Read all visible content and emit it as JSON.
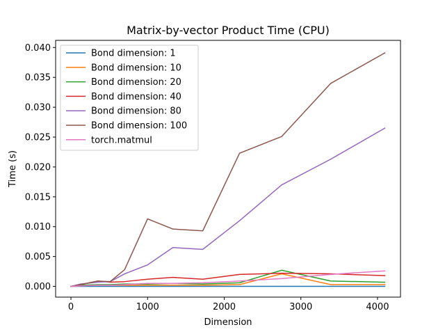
{
  "chart_data": {
    "type": "line",
    "title": "Matrix-by-vector Product Time (CPU)",
    "xlabel": "Dimension",
    "ylabel": "Time (s)",
    "xlim": [
      -200,
      4300
    ],
    "ylim": [
      -0.0018,
      0.0412
    ],
    "xticks": [
      0,
      1000,
      2000,
      3000,
      4000
    ],
    "xtick_labels": [
      "0",
      "1000",
      "2000",
      "3000",
      "4000"
    ],
    "yticks": [
      0.0,
      0.005,
      0.01,
      0.015,
      0.02,
      0.025,
      0.03,
      0.035,
      0.04
    ],
    "ytick_labels": [
      "0.000",
      "0.005",
      "0.010",
      "0.015",
      "0.020",
      "0.025",
      "0.030",
      "0.035",
      "0.040"
    ],
    "grid": false,
    "legend_position": "upper-left",
    "x": [
      0,
      128,
      350,
      512,
      700,
      1000,
      1330,
      1720,
      2200,
      2750,
      3390,
      4096
    ],
    "series": [
      {
        "name": "Bond dimension: 1",
        "color": "#1f77b4",
        "values": [
          0.0,
          0.0,
          0.0,
          0.0,
          0.0,
          0.0,
          0.0,
          0.0,
          0.0,
          0.0,
          0.0,
          0.0
        ]
      },
      {
        "name": "Bond dimension: 10",
        "color": "#ff7f0e",
        "values": [
          0.0,
          0.0001,
          0.0002,
          0.0002,
          0.0002,
          0.0002,
          0.0002,
          0.0002,
          0.0003,
          0.0021,
          0.0003,
          0.0003
        ]
      },
      {
        "name": "Bond dimension: 20",
        "color": "#2ca02c",
        "values": [
          0.0,
          0.0002,
          0.0003,
          0.0003,
          0.0004,
          0.0004,
          0.0005,
          0.0004,
          0.0006,
          0.0027,
          0.0009,
          0.0007
        ]
      },
      {
        "name": "Bond dimension: 40",
        "color": "#d62728",
        "values": [
          0.0,
          0.0003,
          0.0009,
          0.0007,
          0.0008,
          0.0012,
          0.0015,
          0.0012,
          0.002,
          0.0022,
          0.0021,
          0.0018
        ]
      },
      {
        "name": "Bond dimension: 80",
        "color": "#9467bd",
        "values": [
          0.0,
          0.0004,
          0.0007,
          0.0008,
          0.0021,
          0.0036,
          0.0065,
          0.0062,
          0.011,
          0.017,
          0.0213,
          0.0265
        ]
      },
      {
        "name": "Bond dimension: 100",
        "color": "#8c564b",
        "values": [
          0.0,
          0.0003,
          0.0009,
          0.0008,
          0.0028,
          0.0113,
          0.0096,
          0.0093,
          0.0223,
          0.0251,
          0.034,
          0.0391
        ]
      },
      {
        "name": "torch.matmul",
        "color": "#e377c2",
        "values": [
          0.0,
          0.0001,
          0.0002,
          0.0002,
          0.0003,
          0.0005,
          0.0005,
          0.0006,
          0.0009,
          0.0013,
          0.002,
          0.0026
        ]
      }
    ]
  }
}
